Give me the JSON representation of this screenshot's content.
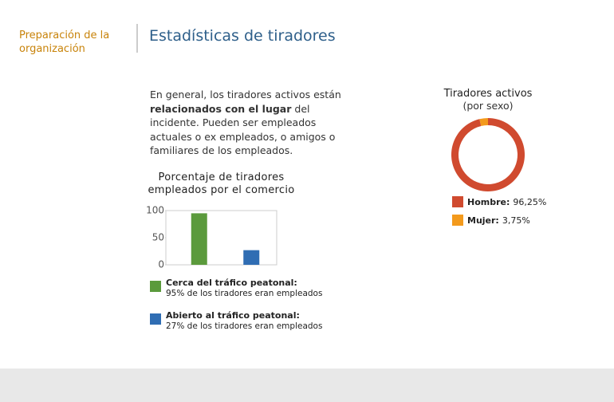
{
  "header": {
    "section": "Preparación de la organización",
    "title": "Estadísticas de tiradores"
  },
  "intro": [
    "En general, los tiradores activos están ",
    "relacionados con el lugar",
    " del incidente. Pueden ser empleados actuales o ex empleados, o amigos o familiares de los empleados."
  ],
  "chart_data": [
    {
      "type": "bar",
      "title": "Porcentaje de tiradores empleados por el comercio",
      "categories": [
        "Cerca del tráfico peatonal:",
        "Abierto al tráfico peatonal:"
      ],
      "descriptions": [
        "95% de los tiradores eran empleados",
        "27% de los tiradores eran empleados"
      ],
      "values": [
        95,
        27
      ],
      "colors": [
        "#5b9a3c",
        "#2f6db3"
      ],
      "ylim": [
        0,
        100
      ],
      "yticks": [
        0,
        50,
        100
      ]
    },
    {
      "type": "pie",
      "title": "Tiradores activos",
      "subtitle": "(por sexo)",
      "categories": [
        "Hombre:",
        "Mujer:"
      ],
      "values": [
        96.25,
        3.75
      ],
      "value_labels": [
        "96,25%",
        "3,75%"
      ],
      "colors": [
        "#d04a2f",
        "#f39a1c"
      ]
    }
  ]
}
